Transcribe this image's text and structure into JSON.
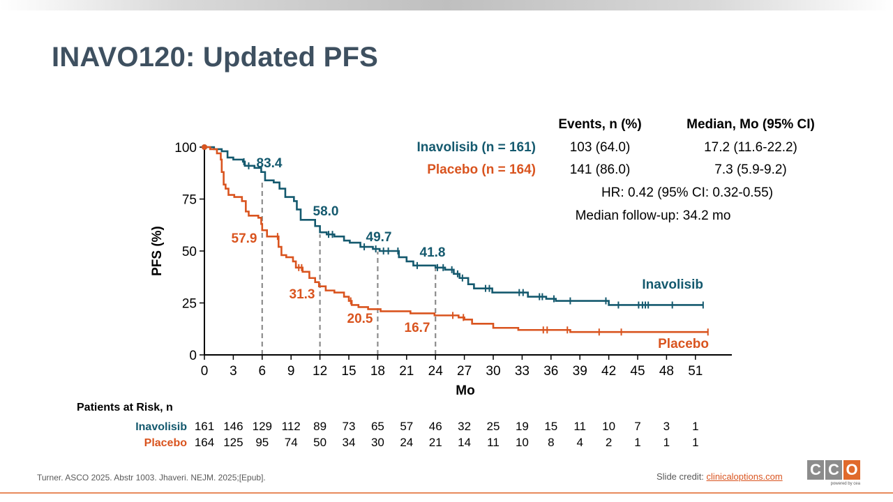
{
  "slide": {
    "title": "INAVO120: Updated PFS",
    "citation": "Turner. ASCO 2025. Abstr 1003. Jhaveri. NEJM. 2025;[Epub].",
    "credit_label": "Slide credit: ",
    "credit_link": "clinicaloptions.com",
    "logo_letters": [
      "C",
      "C",
      "O"
    ],
    "logo_sub": "powered by cea"
  },
  "stats_table": {
    "col_events": "Events, n (%)",
    "col_median": "Median, Mo (95% CI)",
    "rows": [
      {
        "name": "Inavolisib (n = 161)",
        "events": "103 (64.0)",
        "median": "17.2 (11.6-22.2)",
        "color": "#14596e"
      },
      {
        "name": "Placebo (n = 164)",
        "events": "141 (86.0)",
        "median": "7.3 (5.9-9.2)",
        "color": "#d9541f"
      }
    ],
    "hr": "HR: 0.42 (95% CI: 0.32-0.55)",
    "followup": "Median follow-up: 34.2 mo"
  },
  "chart_data": {
    "type": "line",
    "subtype": "kaplan-meier step",
    "xlabel": "Mo",
    "ylabel": "PFS (%)",
    "xlim": [
      0,
      54
    ],
    "ylim": [
      0,
      100
    ],
    "x_ticks": [
      0,
      3,
      6,
      9,
      12,
      15,
      18,
      21,
      24,
      27,
      30,
      33,
      36,
      39,
      42,
      45,
      48,
      51
    ],
    "y_ticks": [
      0,
      25,
      50,
      75,
      100
    ],
    "reference_months": [
      6,
      12,
      18,
      24
    ],
    "series": [
      {
        "name": "Inavolisib",
        "color": "#14596e",
        "steps": [
          [
            0,
            100
          ],
          [
            1,
            99
          ],
          [
            1.8,
            98
          ],
          [
            2.4,
            95
          ],
          [
            3,
            94
          ],
          [
            4,
            93
          ],
          [
            4.2,
            91
          ],
          [
            5.2,
            90
          ],
          [
            5.9,
            88
          ],
          [
            6.3,
            84
          ],
          [
            7.2,
            83
          ],
          [
            7.8,
            80
          ],
          [
            8.4,
            76
          ],
          [
            9.3,
            74
          ],
          [
            9.6,
            70
          ],
          [
            10,
            65
          ],
          [
            11.5,
            62
          ],
          [
            12,
            59
          ],
          [
            12.7,
            58
          ],
          [
            13.5,
            57
          ],
          [
            14.5,
            55
          ],
          [
            15.1,
            54
          ],
          [
            16.2,
            52
          ],
          [
            17.5,
            51
          ],
          [
            18.2,
            50
          ],
          [
            20.2,
            47
          ],
          [
            21,
            45
          ],
          [
            21.7,
            43
          ],
          [
            24,
            42
          ],
          [
            25,
            41
          ],
          [
            25.9,
            39
          ],
          [
            26.5,
            37
          ],
          [
            27.4,
            34
          ],
          [
            28,
            32
          ],
          [
            29.9,
            30
          ],
          [
            33.6,
            28
          ],
          [
            35.5,
            27
          ],
          [
            36.5,
            26
          ],
          [
            42,
            24
          ]
        ],
        "end_month": 51.8,
        "censor_months": [
          4.1,
          4.6,
          12.9,
          13.3,
          16.6,
          17.8,
          18.6,
          19.1,
          20.1,
          22.1,
          24.2,
          24.8,
          25.7,
          26.3,
          26.8,
          29.2,
          29.6,
          32.7,
          33.1,
          34.8,
          35.1,
          36.3,
          38.0,
          41.7,
          43.0,
          45.1,
          45.5,
          45.8,
          46.1,
          48.6,
          51.8
        ],
        "milestone_labels": [
          {
            "month": 6,
            "value": 83.4,
            "text": "83.4"
          },
          {
            "month": 12,
            "value": 58.0,
            "text": "58.0"
          },
          {
            "month": 18,
            "value": 49.7,
            "text": "49.7"
          },
          {
            "month": 24,
            "value": 41.8,
            "text": "41.8"
          }
        ],
        "curve_label": "Inavolisib"
      },
      {
        "name": "Placebo",
        "color": "#d9541f",
        "steps": [
          [
            0,
            100
          ],
          [
            0.6,
            99
          ],
          [
            1.3,
            97
          ],
          [
            1.7,
            94
          ],
          [
            1.8,
            88
          ],
          [
            2,
            82
          ],
          [
            2.2,
            80
          ],
          [
            2.5,
            77
          ],
          [
            3.1,
            76
          ],
          [
            3.9,
            74
          ],
          [
            4.3,
            69
          ],
          [
            4.6,
            67
          ],
          [
            5.6,
            66
          ],
          [
            5.9,
            63
          ],
          [
            6,
            60
          ],
          [
            6.5,
            57
          ],
          [
            7.7,
            52
          ],
          [
            8,
            48
          ],
          [
            8.5,
            47
          ],
          [
            9.2,
            45
          ],
          [
            9.5,
            42
          ],
          [
            10.2,
            40
          ],
          [
            10.9,
            37
          ],
          [
            11.5,
            35
          ],
          [
            11.9,
            33
          ],
          [
            12.6,
            31
          ],
          [
            13.5,
            30
          ],
          [
            14.5,
            28
          ],
          [
            15,
            26
          ],
          [
            15.3,
            24
          ],
          [
            16,
            23
          ],
          [
            17,
            22
          ],
          [
            18.3,
            21
          ],
          [
            21.4,
            20
          ],
          [
            23.9,
            19
          ],
          [
            26.4,
            18
          ],
          [
            27,
            17
          ],
          [
            27.8,
            15
          ],
          [
            30,
            13
          ],
          [
            32.6,
            12
          ],
          [
            38,
            11
          ]
        ],
        "end_month": 52.3,
        "censor_months": [
          7.6,
          9.8,
          10.1,
          15.2,
          25.8,
          26.9,
          35.2,
          35.6,
          37.7,
          41.0,
          43.3,
          52.3
        ],
        "milestone_labels": [
          {
            "month": 6,
            "value": 57.9,
            "text": "57.9"
          },
          {
            "month": 12,
            "value": 31.3,
            "text": "31.3"
          },
          {
            "month": 18,
            "value": 20.5,
            "text": "20.5"
          },
          {
            "month": 24,
            "value": 16.7,
            "text": "16.7"
          }
        ],
        "curve_label": "Placebo"
      }
    ],
    "risk_table": {
      "title": "Patients at Risk, n",
      "rows": [
        {
          "name": "Inavolisib",
          "color": "#14596e",
          "values": [
            161,
            146,
            129,
            112,
            89,
            73,
            65,
            57,
            46,
            32,
            25,
            19,
            15,
            11,
            10,
            7,
            3,
            1
          ]
        },
        {
          "name": "Placebo",
          "color": "#d9541f",
          "values": [
            164,
            125,
            95,
            74,
            50,
            34,
            30,
            24,
            21,
            14,
            11,
            10,
            8,
            4,
            2,
            1,
            1,
            1
          ]
        }
      ]
    }
  }
}
